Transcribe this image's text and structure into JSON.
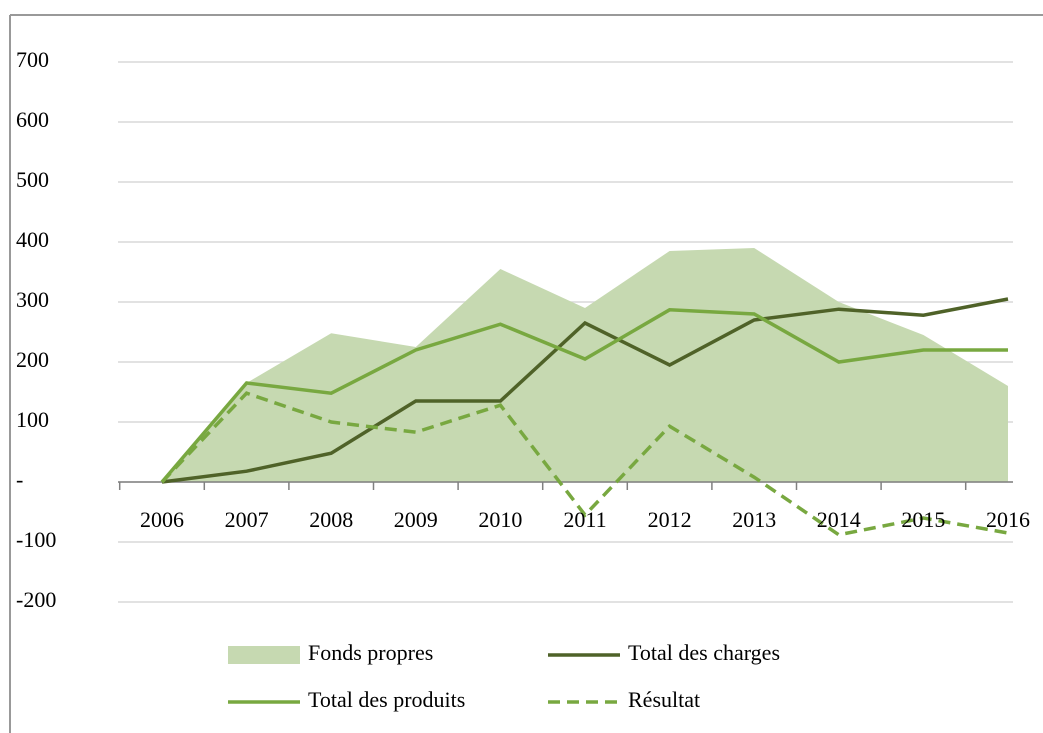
{
  "chart_data": {
    "type": "line",
    "categories": [
      "2006",
      "2007",
      "2008",
      "2009",
      "2010",
      "2011",
      "2012",
      "2013",
      "2014",
      "2015",
      "2016"
    ],
    "series": [
      {
        "name": "Fonds propres",
        "color": "#c6d9b1",
        "kind": "area",
        "values": [
          0,
          165,
          248,
          225,
          355,
          290,
          385,
          390,
          300,
          245,
          160
        ]
      },
      {
        "name": "Total des charges",
        "color": "#4f6228",
        "kind": "line",
        "values": [
          0,
          18,
          48,
          135,
          135,
          265,
          195,
          270,
          288,
          278,
          305
        ]
      },
      {
        "name": "Total des produits",
        "color": "#78a840",
        "kind": "line",
        "values": [
          0,
          165,
          148,
          220,
          263,
          205,
          287,
          280,
          200,
          220,
          220
        ]
      },
      {
        "name": "Résultat",
        "color": "#78a840",
        "kind": "line",
        "dashed": true,
        "values": [
          0,
          148,
          100,
          83,
          128,
          -55,
          93,
          8,
          -88,
          -60,
          -85
        ]
      }
    ],
    "ylim": [
      -200,
      700
    ],
    "yticks": [
      -200,
      -100,
      {
        "value": 0,
        "label": "-"
      },
      100,
      200,
      300,
      400,
      500,
      600,
      700
    ],
    "grid": true
  }
}
